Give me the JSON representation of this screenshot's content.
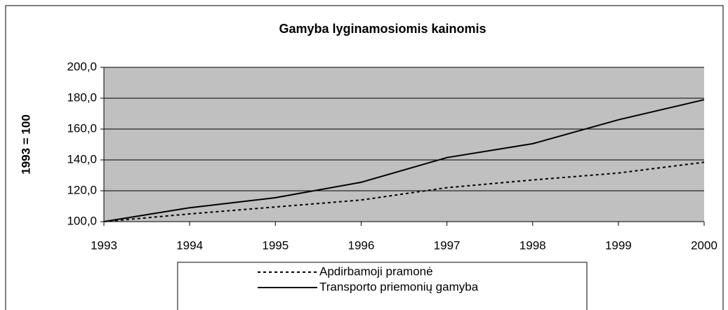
{
  "chart_data": {
    "type": "line",
    "title": "Gamyba lyginamosiomis kainomis",
    "y_label": "1993 = 100",
    "x": [
      1993,
      1994,
      1995,
      1996,
      1997,
      1998,
      1999,
      2000
    ],
    "series": [
      {
        "name": "Apdirbamoji pramonė",
        "color": "#000000",
        "line_style": "dotted",
        "values": [
          100,
          105,
          109.5,
          114,
          122,
          127,
          131.5,
          138.5
        ]
      },
      {
        "name": "Transporto priemonių gamyba",
        "color": "#000000",
        "line_style": "solid",
        "values": [
          100,
          109,
          115.5,
          125.5,
          141.5,
          150.5,
          166,
          179
        ]
      }
    ],
    "xlim": [
      1993,
      2000
    ],
    "xticks": [
      1993,
      1994,
      1995,
      1996,
      1997,
      1998,
      1999,
      2000
    ],
    "ylim": [
      100,
      200
    ],
    "yticks": [
      {
        "value": 100,
        "label": "100,0"
      },
      {
        "value": 120,
        "label": "120,0"
      },
      {
        "value": 140,
        "label": "140,0"
      },
      {
        "value": 160,
        "label": "160,0"
      },
      {
        "value": 180,
        "label": "180,0"
      },
      {
        "value": 200,
        "label": "200,0"
      }
    ],
    "grid": true,
    "plot_background": "#c0c0c0",
    "legend": "bottom"
  }
}
